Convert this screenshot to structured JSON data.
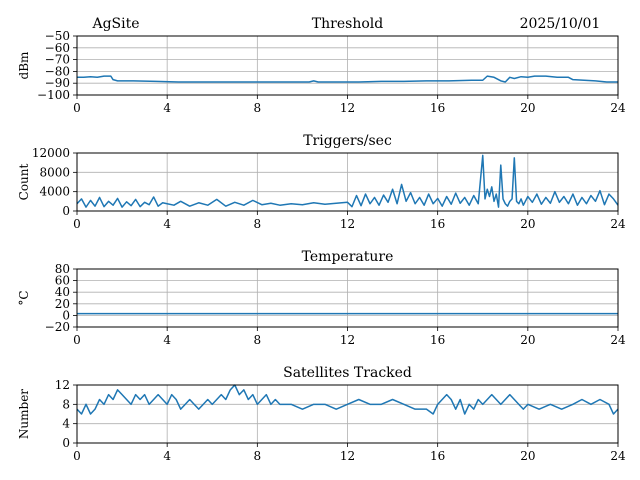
{
  "header": {
    "site": "AgSite",
    "date": "2025/10/01"
  },
  "colors": {
    "series": "#1f77b4",
    "grid": "#b0b0b0"
  },
  "chart_data": [
    {
      "type": "line",
      "title": "Threshold",
      "ylabel": "dBm",
      "xlim": [
        0,
        24
      ],
      "ylim": [
        -100,
        -50
      ],
      "xticks": [
        0,
        4,
        8,
        12,
        16,
        20,
        24
      ],
      "yticks": [
        -100,
        -90,
        -80,
        -70,
        -60,
        -50
      ],
      "ytick_labels": [
        "−100",
        "−90",
        "−80",
        "−70",
        "−60",
        "−50"
      ],
      "grid": true,
      "x": [
        0,
        0.3,
        0.6,
        0.9,
        1.2,
        1.5,
        1.6,
        1.8,
        2.5,
        3.5,
        4.5,
        5.5,
        6.5,
        7.5,
        8.5,
        9.5,
        10.3,
        10.5,
        10.7,
        11.5,
        12.5,
        13.5,
        14.5,
        15.5,
        16.5,
        17.5,
        18.0,
        18.2,
        18.5,
        18.8,
        19.0,
        19.2,
        19.4,
        19.7,
        20.0,
        20.3,
        20.8,
        21.3,
        21.8,
        22.0,
        22.5,
        23.0,
        23.5,
        24
      ],
      "y": [
        -85,
        -85,
        -84.5,
        -85,
        -84,
        -84,
        -87,
        -88,
        -88,
        -88.5,
        -89,
        -89,
        -89,
        -89,
        -89,
        -89,
        -89,
        -88,
        -89,
        -89,
        -89,
        -88.5,
        -88.5,
        -88,
        -88,
        -87.5,
        -87.5,
        -84,
        -85,
        -88,
        -89,
        -85,
        -86,
        -84.5,
        -85,
        -84,
        -84,
        -85,
        -85,
        -87,
        -87.5,
        -88,
        -89,
        -89
      ]
    },
    {
      "type": "line",
      "title": "Triggers/sec",
      "ylabel": "Count",
      "xlim": [
        0,
        24
      ],
      "ylim": [
        0,
        12000
      ],
      "xticks": [
        0,
        4,
        8,
        12,
        16,
        20,
        24
      ],
      "yticks": [
        0,
        4000,
        8000,
        12000
      ],
      "ytick_labels": [
        "0",
        "4000",
        "8000",
        "12000"
      ],
      "grid": true,
      "x": [
        0,
        0.2,
        0.4,
        0.6,
        0.8,
        1.0,
        1.2,
        1.4,
        1.6,
        1.8,
        2.0,
        2.2,
        2.4,
        2.6,
        2.8,
        3.0,
        3.2,
        3.4,
        3.6,
        3.8,
        4.0,
        4.3,
        4.6,
        5.0,
        5.4,
        5.8,
        6.2,
        6.6,
        7.0,
        7.4,
        7.8,
        8.2,
        8.6,
        9.0,
        9.5,
        10.0,
        10.5,
        11.0,
        11.5,
        12.0,
        12.2,
        12.4,
        12.6,
        12.8,
        13.0,
        13.2,
        13.4,
        13.6,
        13.8,
        14.0,
        14.2,
        14.4,
        14.6,
        14.8,
        15.0,
        15.2,
        15.4,
        15.6,
        15.8,
        16.0,
        16.2,
        16.4,
        16.6,
        16.8,
        17.0,
        17.2,
        17.4,
        17.6,
        17.8,
        18.0,
        18.1,
        18.2,
        18.3,
        18.4,
        18.5,
        18.6,
        18.7,
        18.8,
        18.9,
        19.0,
        19.1,
        19.2,
        19.3,
        19.4,
        19.5,
        19.6,
        19.7,
        19.8,
        20.0,
        20.2,
        20.4,
        20.6,
        20.8,
        21.0,
        21.2,
        21.4,
        21.6,
        21.8,
        22.0,
        22.2,
        22.4,
        22.6,
        22.8,
        23.0,
        23.2,
        23.4,
        23.6,
        23.8,
        24
      ],
      "y": [
        1500,
        2500,
        800,
        2200,
        1000,
        2800,
        900,
        2000,
        1200,
        2600,
        800,
        1900,
        1100,
        2400,
        900,
        1800,
        1300,
        2900,
        1000,
        1700,
        1500,
        1200,
        2000,
        1000,
        1700,
        1200,
        2400,
        1000,
        1800,
        1200,
        2200,
        1300,
        1600,
        1200,
        1500,
        1300,
        1700,
        1400,
        1600,
        1800,
        900,
        3200,
        1100,
        3500,
        1500,
        2800,
        1200,
        3300,
        1800,
        4500,
        1500,
        5500,
        2000,
        3800,
        1500,
        2800,
        1200,
        3500,
        1500,
        2600,
        1000,
        3000,
        1400,
        3700,
        1600,
        2800,
        1200,
        3200,
        1500,
        11500,
        2500,
        4500,
        3000,
        5000,
        2000,
        3500,
        800,
        9500,
        2500,
        1500,
        1000,
        2000,
        2500,
        11000,
        2000,
        1500,
        2500,
        1200,
        3000,
        1800,
        3500,
        1400,
        2800,
        1600,
        4000,
        1800,
        3000,
        1500,
        3500,
        1200,
        2800,
        1500,
        3200,
        2000,
        4200,
        1300,
        3500,
        2500,
        1200
      ]
    },
    {
      "type": "line",
      "title": "Temperature",
      "ylabel": "°C",
      "xlim": [
        0,
        24
      ],
      "ylim": [
        -20,
        80
      ],
      "xticks": [
        0,
        4,
        8,
        12,
        16,
        20,
        24
      ],
      "yticks": [
        -20,
        0,
        20,
        40,
        60,
        80
      ],
      "ytick_labels": [
        "−20",
        "0",
        "20",
        "40",
        "60",
        "80"
      ],
      "grid": true,
      "x": [
        0,
        24
      ],
      "y": [
        3,
        3
      ]
    },
    {
      "type": "line",
      "title": "Satellites Tracked",
      "ylabel": "Number",
      "xlim": [
        0,
        24
      ],
      "ylim": [
        0,
        12
      ],
      "xticks": [
        0,
        4,
        8,
        12,
        16,
        20,
        24
      ],
      "yticks": [
        0,
        4,
        8,
        12
      ],
      "ytick_labels": [
        "0",
        "4",
        "8",
        "12"
      ],
      "grid": true,
      "x": [
        0,
        0.2,
        0.4,
        0.6,
        0.8,
        1.0,
        1.2,
        1.4,
        1.6,
        1.8,
        2.0,
        2.2,
        2.4,
        2.6,
        2.8,
        3.0,
        3.2,
        3.4,
        3.6,
        3.8,
        4.0,
        4.2,
        4.4,
        4.6,
        4.8,
        5.0,
        5.2,
        5.4,
        5.6,
        5.8,
        6.0,
        6.2,
        6.4,
        6.6,
        6.8,
        7.0,
        7.2,
        7.4,
        7.6,
        7.8,
        8.0,
        8.2,
        8.4,
        8.6,
        8.8,
        9.0,
        9.5,
        10.0,
        10.5,
        11.0,
        11.5,
        12.0,
        12.5,
        13.0,
        13.5,
        14.0,
        14.5,
        15.0,
        15.5,
        15.8,
        16.0,
        16.2,
        16.4,
        16.6,
        16.8,
        17.0,
        17.2,
        17.4,
        17.6,
        17.8,
        18.0,
        18.2,
        18.4,
        18.6,
        18.8,
        19.0,
        19.2,
        19.4,
        19.6,
        19.8,
        20.0,
        20.5,
        21.0,
        21.5,
        22.0,
        22.4,
        22.8,
        23.2,
        23.6,
        23.8,
        24
      ],
      "y": [
        7,
        6,
        8,
        6,
        7,
        9,
        8,
        10,
        9,
        11,
        10,
        9,
        8,
        10,
        9,
        10,
        8,
        9,
        10,
        9,
        8,
        10,
        9,
        7,
        8,
        9,
        8,
        7,
        8,
        9,
        8,
        9,
        10,
        9,
        11,
        12,
        10,
        11,
        9,
        10,
        8,
        9,
        10,
        8,
        9,
        8,
        8,
        7,
        8,
        8,
        7,
        8,
        9,
        8,
        8,
        9,
        8,
        7,
        7,
        6,
        8,
        9,
        10,
        9,
        7,
        9,
        6,
        8,
        7,
        9,
        8,
        9,
        10,
        9,
        8,
        9,
        10,
        9,
        8,
        7,
        8,
        7,
        8,
        7,
        8,
        9,
        8,
        9,
        8,
        6,
        7
      ]
    }
  ]
}
